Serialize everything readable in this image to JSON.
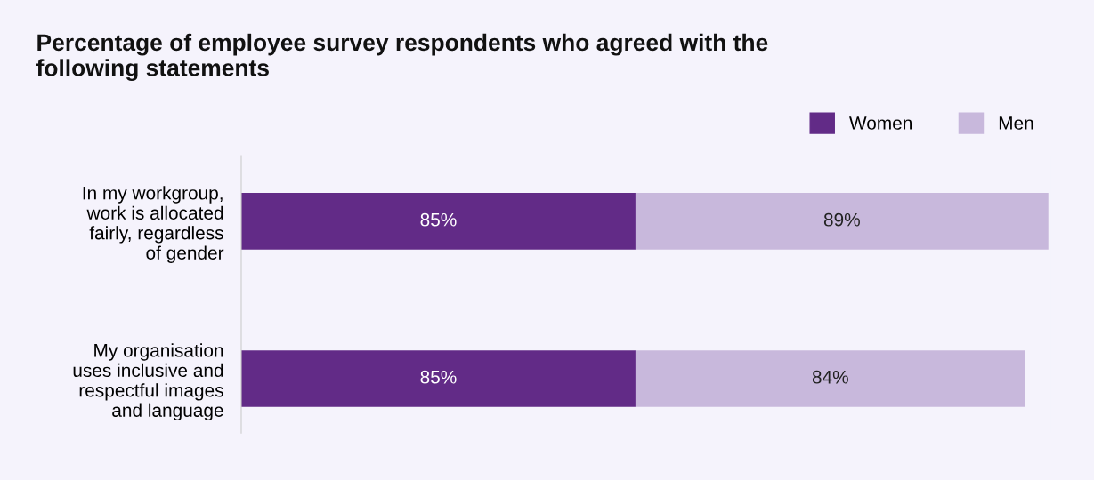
{
  "chart_data": {
    "type": "bar",
    "orientation": "horizontal",
    "stacked": true,
    "title": "Percentage of employee survey respondents who agreed with the\nfollowing statements",
    "categories": [
      "In my workgroup,\nwork is allocated\nfairly, regardless\nof gender",
      "My organisation\nuses inclusive and\nrespectful images\nand language"
    ],
    "series": [
      {
        "name": "Women",
        "color": "#622b87",
        "values": [
          85,
          85
        ],
        "value_labels": [
          "85%",
          "85%"
        ]
      },
      {
        "name": "Men",
        "color": "#c8b8dc",
        "values": [
          89,
          84
        ],
        "value_labels": [
          "89%",
          "84%"
        ]
      }
    ],
    "legend": "top right",
    "grid": false,
    "tick_labels": "y"
  }
}
